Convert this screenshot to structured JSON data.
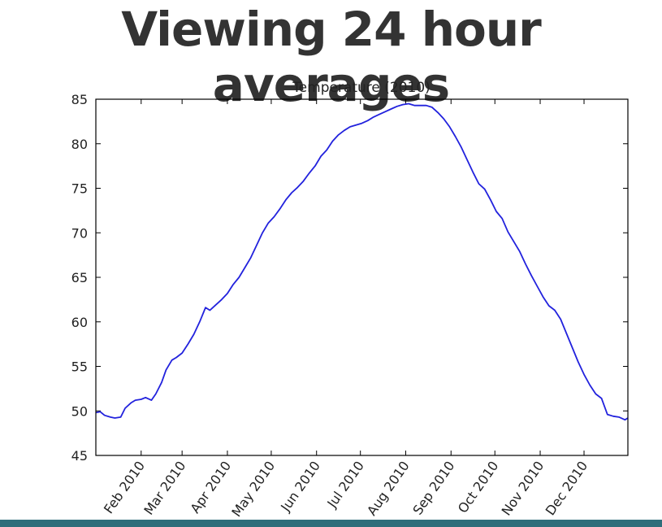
{
  "slide": {
    "title": "Viewing 24 hour averages"
  },
  "colors": {
    "line": "#2222dd",
    "text": "#333333",
    "bottom_bar": "#2e6e7a"
  },
  "chart_data": {
    "type": "line",
    "title": "Temperature (2010)",
    "xlabel": "",
    "ylabel": "",
    "xlim": [
      "2010-01-01",
      "2010-12-31"
    ],
    "ylim": [
      45,
      85
    ],
    "yticks": [
      45,
      50,
      55,
      60,
      65,
      70,
      75,
      80,
      85
    ],
    "xticks": [
      {
        "date": "2010-02-01",
        "label": "Feb 2010"
      },
      {
        "date": "2010-03-01",
        "label": "Mar 2010"
      },
      {
        "date": "2010-04-01",
        "label": "Apr 2010"
      },
      {
        "date": "2010-05-01",
        "label": "May 2010"
      },
      {
        "date": "2010-06-01",
        "label": "Jun 2010"
      },
      {
        "date": "2010-07-01",
        "label": "Jul 2010"
      },
      {
        "date": "2010-08-01",
        "label": "Aug 2010"
      },
      {
        "date": "2010-09-01",
        "label": "Sep 2010"
      },
      {
        "date": "2010-10-01",
        "label": "Oct 2010"
      },
      {
        "date": "2010-11-01",
        "label": "Nov 2010"
      },
      {
        "date": "2010-12-01",
        "label": "Dec 2010"
      }
    ],
    "grid": false,
    "legend": "none",
    "series": [
      {
        "name": "",
        "x": [
          "2010-01-01",
          "2010-01-04",
          "2010-01-07",
          "2010-01-11",
          "2010-01-14",
          "2010-01-18",
          "2010-01-21",
          "2010-01-25",
          "2010-01-28",
          "2010-02-01",
          "2010-02-04",
          "2010-02-08",
          "2010-02-11",
          "2010-02-15",
          "2010-02-18",
          "2010-02-22",
          "2010-02-25",
          "2010-03-01",
          "2010-03-05",
          "2010-03-09",
          "2010-03-13",
          "2010-03-16",
          "2010-03-17",
          "2010-03-20",
          "2010-03-24",
          "2010-03-28",
          "2010-04-01",
          "2010-04-05",
          "2010-04-09",
          "2010-04-13",
          "2010-04-17",
          "2010-04-21",
          "2010-04-25",
          "2010-04-29",
          "2010-05-03",
          "2010-05-07",
          "2010-05-11",
          "2010-05-15",
          "2010-05-19",
          "2010-05-23",
          "2010-05-27",
          "2010-05-31",
          "2010-06-04",
          "2010-06-08",
          "2010-06-12",
          "2010-06-16",
          "2010-06-20",
          "2010-06-24",
          "2010-06-28",
          "2010-07-02",
          "2010-07-06",
          "2010-07-10",
          "2010-07-14",
          "2010-07-18",
          "2010-07-22",
          "2010-07-26",
          "2010-07-30",
          "2010-08-03",
          "2010-08-07",
          "2010-08-11",
          "2010-08-15",
          "2010-08-19",
          "2010-08-23",
          "2010-08-27",
          "2010-08-31",
          "2010-09-04",
          "2010-09-08",
          "2010-09-12",
          "2010-09-16",
          "2010-09-20",
          "2010-09-24",
          "2010-09-28",
          "2010-10-02",
          "2010-10-06",
          "2010-10-10",
          "2010-10-14",
          "2010-10-18",
          "2010-10-22",
          "2010-10-26",
          "2010-10-30",
          "2010-11-03",
          "2010-11-07",
          "2010-11-11",
          "2010-11-15",
          "2010-11-19",
          "2010-11-23",
          "2010-11-27",
          "2010-12-01",
          "2010-12-05",
          "2010-12-09",
          "2010-12-13",
          "2010-12-17",
          "2010-12-21",
          "2010-12-25",
          "2010-12-29",
          "2010-12-31"
        ],
        "y": [
          49.8,
          49.9,
          49.5,
          49.3,
          49.2,
          49.3,
          50.3,
          50.9,
          51.2,
          51.3,
          51.5,
          51.2,
          51.9,
          53.2,
          54.6,
          55.7,
          56.0,
          56.5,
          57.5,
          58.6,
          60.0,
          61.2,
          61.6,
          61.3,
          61.9,
          62.5,
          63.2,
          64.2,
          65.0,
          66.1,
          67.2,
          68.6,
          70.0,
          71.1,
          71.8,
          72.7,
          73.7,
          74.5,
          75.1,
          75.8,
          76.7,
          77.5,
          78.6,
          79.3,
          80.3,
          81.0,
          81.5,
          81.9,
          82.1,
          82.3,
          82.6,
          83.0,
          83.3,
          83.6,
          83.9,
          84.2,
          84.4,
          84.5,
          84.3,
          84.3,
          84.3,
          84.1,
          83.5,
          82.8,
          81.9,
          80.8,
          79.6,
          78.2,
          76.8,
          75.5,
          74.9,
          73.7,
          72.4,
          71.6,
          70.1,
          69.0,
          67.9,
          66.5,
          65.2,
          64.0,
          62.8,
          61.8,
          61.3,
          60.3,
          58.7,
          57.1,
          55.5,
          54.1,
          52.9,
          51.9,
          51.4,
          49.6,
          49.4,
          49.3,
          49.0,
          49.2
        ]
      }
    ]
  }
}
